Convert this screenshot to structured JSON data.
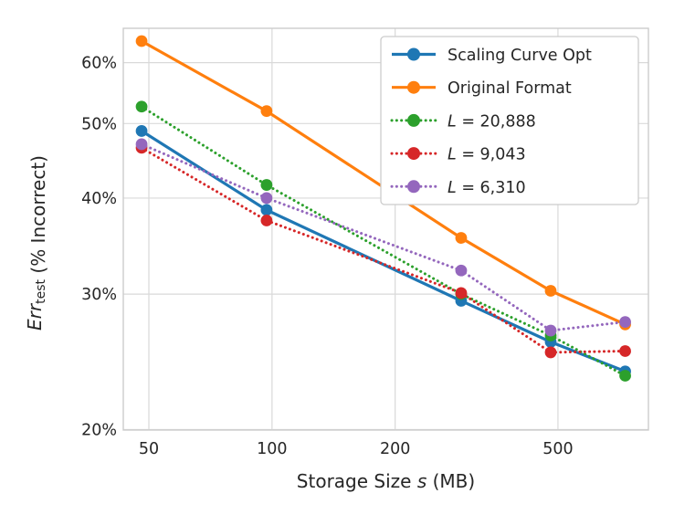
{
  "chart_data": {
    "type": "line",
    "title": "",
    "x_scale": "log",
    "y_scale": "log",
    "xlabel_rich": [
      [
        "Storage Size ",
        ""
      ],
      [
        "s",
        "i"
      ],
      [
        " (MB)",
        ""
      ]
    ],
    "ylabel_rich": [
      [
        "Err",
        "i"
      ],
      [
        "test",
        "sub"
      ],
      [
        " (% Incorrect)",
        ""
      ]
    ],
    "xlim": [
      43.3,
      832
    ],
    "ylim": [
      19.97,
      66.5
    ],
    "x_ticks": [
      {
        "v": 50,
        "label": "50"
      },
      {
        "v": 100,
        "label": "100"
      },
      {
        "v": 200,
        "label": "200"
      },
      {
        "v": 500,
        "label": "500"
      }
    ],
    "y_ticks": [
      {
        "v": 20,
        "label": "20%"
      },
      {
        "v": 30,
        "label": "30%"
      },
      {
        "v": 40,
        "label": "40%"
      },
      {
        "v": 50,
        "label": "50%"
      },
      {
        "v": 60,
        "label": "60%"
      }
    ],
    "x": [
      48,
      97,
      290,
      480,
      730
    ],
    "series": [
      {
        "name": "scaling-curve-opt",
        "label": "Scaling Curve Opt",
        "label_rich": [
          [
            "Scaling Curve Opt",
            ""
          ]
        ],
        "color": "#1f77b4",
        "style": "solid",
        "values": [
          48.9,
          38.6,
          29.4,
          26.0,
          23.8
        ]
      },
      {
        "name": "original-format",
        "label": "Original Format",
        "label_rich": [
          [
            "Original Format",
            ""
          ]
        ],
        "color": "#ff7f0e",
        "style": "solid",
        "values": [
          64.0,
          51.9,
          35.5,
          30.3,
          27.4
        ]
      },
      {
        "name": "L-20888",
        "label": "L =  20,888",
        "label_rich": [
          [
            "L",
            "i"
          ],
          [
            " =  20,888",
            ""
          ]
        ],
        "color": "#2ca02c",
        "style": "dotted",
        "values": [
          52.6,
          41.6,
          30.0,
          26.5,
          23.5
        ]
      },
      {
        "name": "L-9043",
        "label": "L =  9,043",
        "label_rich": [
          [
            "L",
            "i"
          ],
          [
            " =  9,043",
            ""
          ]
        ],
        "color": "#d62728",
        "style": "dotted",
        "values": [
          46.5,
          37.4,
          30.1,
          25.2,
          25.3
        ]
      },
      {
        "name": "L-6310",
        "label": "L =  6,310",
        "label_rich": [
          [
            "L",
            "i"
          ],
          [
            " =  6,310",
            ""
          ]
        ],
        "color": "#9467bd",
        "style": "dotted",
        "values": [
          47.0,
          40.0,
          32.2,
          26.9,
          27.6
        ]
      }
    ],
    "legend": {
      "position": "upper right"
    },
    "grid": true,
    "colors": {
      "grid": "#d9d9d9",
      "spine": "#cccccc",
      "text": "#262626",
      "background": "#ffffff",
      "legend_border": "#cccccc",
      "legend_background": "#ffffff"
    }
  }
}
